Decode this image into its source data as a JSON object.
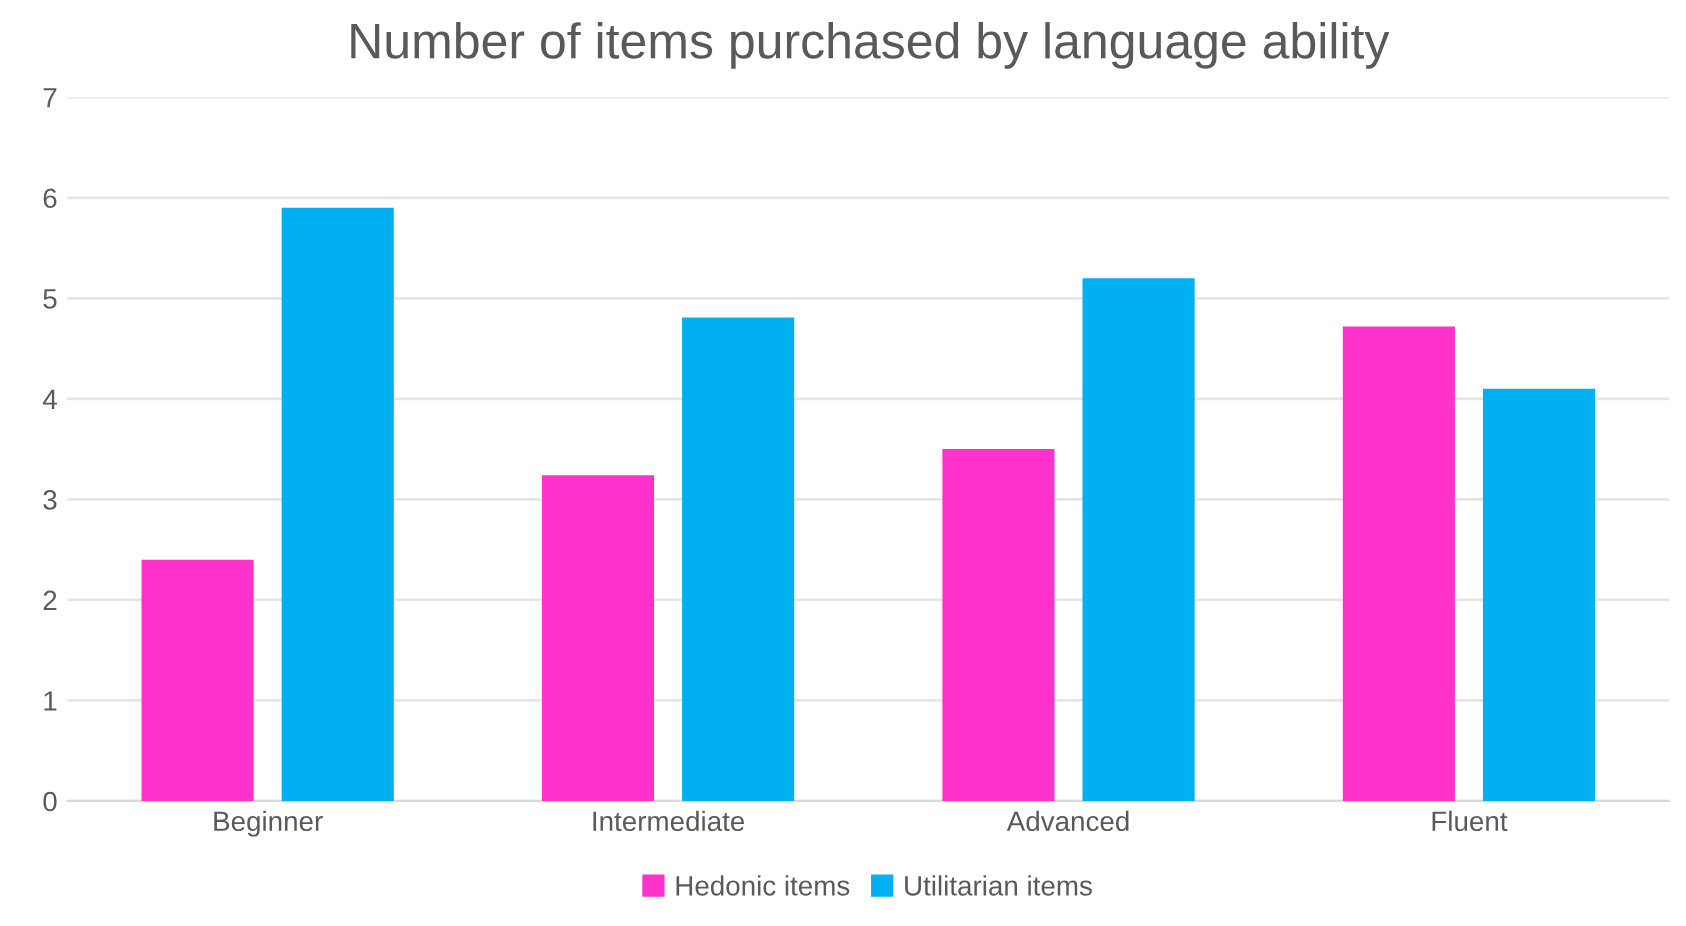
{
  "chart_data": {
    "type": "bar",
    "title": "Number of items purchased by language ability",
    "categories": [
      "Beginner",
      "Intermediate",
      "Advanced",
      "Fluent"
    ],
    "series": [
      {
        "name": "Hedonic items",
        "color": "#ff33cc",
        "values": [
          2.4,
          3.24,
          3.5,
          4.72
        ]
      },
      {
        "name": "Utilitarian items",
        "color": "#00b0f0",
        "values": [
          5.9,
          4.81,
          5.2,
          4.1
        ]
      }
    ],
    "ylim": [
      0,
      7
    ],
    "yticks": [
      0,
      1,
      2,
      3,
      4,
      5,
      6,
      7
    ],
    "grid": "y",
    "legend": "bottom"
  }
}
